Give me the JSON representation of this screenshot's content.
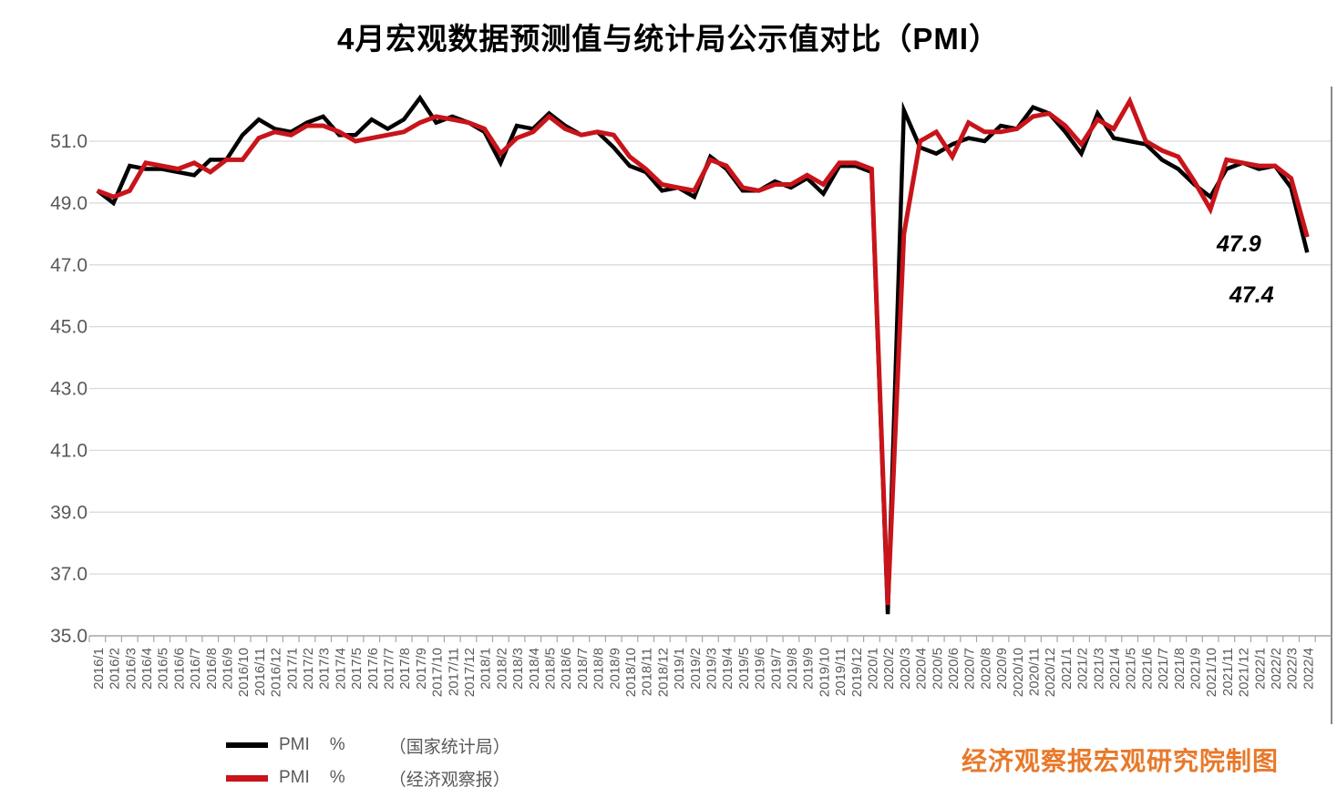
{
  "title": "4月宏观数据预测值与统计局公示值对比（PMI）",
  "colors": {
    "series_nbs": "#000000",
    "series_eo": "#C8141A",
    "gridline": "#D9D9D9",
    "axis": "#A6A6A6",
    "axis_text": "#595959",
    "right_border": "#595959",
    "annotation_text": "#000000",
    "footer_credit": "#E8792A",
    "background": "#FFFFFF"
  },
  "chart_data": {
    "type": "line",
    "title": "4月宏观数据预测值与统计局公示值对比（PMI）",
    "xlabel": "",
    "ylabel": "",
    "ylim": [
      35.0,
      52.5
    ],
    "grid": true,
    "legend_position": "bottom-left",
    "yticks": [
      "51.0",
      "49.0",
      "47.0",
      "45.0",
      "43.0",
      "41.0",
      "39.0",
      "37.0",
      "35.0"
    ],
    "categories": [
      "2016/1",
      "2016/2",
      "2016/3",
      "2016/4",
      "2016/5",
      "2016/6",
      "2016/7",
      "2016/8",
      "2016/9",
      "2016/10",
      "2016/11",
      "2016/12",
      "2017/1",
      "2017/2",
      "2017/3",
      "2017/4",
      "2017/5",
      "2017/6",
      "2017/7",
      "2017/8",
      "2017/9",
      "2017/10",
      "2017/11",
      "2017/12",
      "2018/1",
      "2018/2",
      "2018/3",
      "2018/4",
      "2018/5",
      "2018/6",
      "2018/7",
      "2018/8",
      "2018/9",
      "2018/10",
      "2018/11",
      "2018/12",
      "2019/1",
      "2019/2",
      "2019/3",
      "2019/4",
      "2019/5",
      "2019/6",
      "2019/7",
      "2019/8",
      "2019/9",
      "2019/10",
      "2019/11",
      "2019/12",
      "2020/1",
      "2020/2",
      "2020/3",
      "2020/4",
      "2020/5",
      "2020/6",
      "2020/7",
      "2020/8",
      "2020/9",
      "2020/10",
      "2020/11",
      "2020/12",
      "2021/1",
      "2021/2",
      "2021/3",
      "2021/4",
      "2021/5",
      "2021/6",
      "2021/7",
      "2021/8",
      "2021/9",
      "2021/10",
      "2021/11",
      "2021/12",
      "2022/1",
      "2022/2",
      "2022/3",
      "2022/4"
    ],
    "series": [
      {
        "name": "PMI %（国家统计局）",
        "color": "#000000",
        "stroke_width": 4.5,
        "values": [
          49.4,
          49.0,
          50.2,
          50.1,
          50.1,
          50.0,
          49.9,
          50.4,
          50.4,
          51.2,
          51.7,
          51.4,
          51.3,
          51.6,
          51.8,
          51.2,
          51.2,
          51.7,
          51.4,
          51.7,
          52.4,
          51.6,
          51.8,
          51.6,
          51.3,
          50.3,
          51.5,
          51.4,
          51.9,
          51.5,
          51.2,
          51.3,
          50.8,
          50.2,
          50.0,
          49.4,
          49.5,
          49.2,
          50.5,
          50.1,
          49.4,
          49.4,
          49.7,
          49.5,
          49.8,
          49.3,
          50.2,
          50.2,
          50.0,
          35.7,
          52.0,
          50.8,
          50.6,
          50.9,
          51.1,
          51.0,
          51.5,
          51.4,
          52.1,
          51.9,
          51.3,
          50.6,
          51.9,
          51.1,
          51.0,
          50.9,
          50.4,
          50.1,
          49.6,
          49.2,
          50.1,
          50.3,
          50.1,
          50.2,
          49.5,
          47.4
        ]
      },
      {
        "name": "PMI %（经济观察报）",
        "color": "#C8141A",
        "stroke_width": 5,
        "values": [
          49.4,
          49.2,
          49.4,
          50.3,
          50.2,
          50.1,
          50.3,
          50.0,
          50.4,
          50.4,
          51.1,
          51.3,
          51.2,
          51.5,
          51.5,
          51.3,
          51.0,
          51.1,
          51.2,
          51.3,
          51.6,
          51.8,
          51.7,
          51.6,
          51.4,
          50.6,
          51.1,
          51.3,
          51.8,
          51.4,
          51.2,
          51.3,
          51.2,
          50.5,
          50.1,
          49.6,
          49.5,
          49.4,
          50.4,
          50.2,
          49.5,
          49.4,
          49.6,
          49.6,
          49.9,
          49.6,
          50.3,
          50.3,
          50.1,
          36.0,
          48.0,
          51.0,
          51.3,
          50.5,
          51.6,
          51.3,
          51.3,
          51.4,
          51.8,
          51.9,
          51.5,
          50.9,
          51.7,
          51.4,
          52.3,
          51.0,
          50.7,
          50.5,
          49.7,
          48.8,
          50.4,
          50.3,
          50.2,
          50.2,
          49.8,
          47.9
        ]
      }
    ]
  },
  "annotations": [
    {
      "text": "47.9",
      "series": "经济观察报",
      "month": "2022/4"
    },
    {
      "text": "47.4",
      "series": "国家统计局",
      "month": "2022/4"
    }
  ],
  "legend": [
    {
      "label": "PMI",
      "unit": "%",
      "source": "（国家统计局）"
    },
    {
      "label": "PMI",
      "unit": "%",
      "source": "（经济观察报）"
    }
  ],
  "footer": {
    "credit": "经济观察报宏观研究院制图"
  }
}
